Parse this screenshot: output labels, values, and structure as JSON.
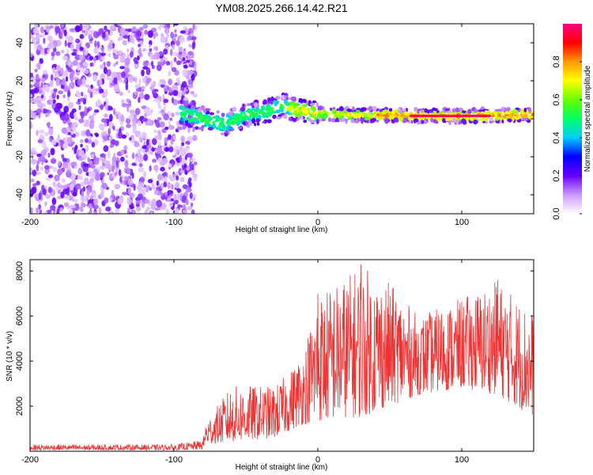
{
  "figure_title": "YM08.2025.266.14.42.R21",
  "chart_data": [
    {
      "type": "heatmap",
      "title": "YM08.2025.266.14.42.R21",
      "xlabel": "Height of straight line (km)",
      "ylabel": "Frequency (Hz)",
      "xlim": [
        -200,
        150
      ],
      "ylim": [
        -50,
        50
      ],
      "x_ticks": [
        -200,
        -100,
        0,
        100
      ],
      "y_ticks": [
        -40,
        -20,
        0,
        20,
        40
      ],
      "x_tick_labels": [
        "-200",
        "-100",
        "0",
        "100"
      ],
      "y_tick_labels": [
        "-40",
        "-20",
        "0",
        "20",
        "40"
      ],
      "noise_region_x": [
        -200,
        -85
      ],
      "signal_band": {
        "x_start": -95,
        "x_end": 150,
        "center_hz": [
          {
            "x": -95,
            "hz": 3
          },
          {
            "x": -80,
            "hz": 0
          },
          {
            "x": -65,
            "hz": -3
          },
          {
            "x": -50,
            "hz": 2
          },
          {
            "x": -35,
            "hz": 4
          },
          {
            "x": -25,
            "hz": 7
          },
          {
            "x": -10,
            "hz": 4
          },
          {
            "x": 0,
            "hz": 3
          },
          {
            "x": 20,
            "hz": 2
          },
          {
            "x": 40,
            "hz": 2
          },
          {
            "x": 70,
            "hz": 1.5
          },
          {
            "x": 100,
            "hz": 1.5
          },
          {
            "x": 150,
            "hz": 2
          }
        ],
        "peak_amplitude_segment_x": [
          65,
          120
        ],
        "peak_amplitude_hz": 1.5
      },
      "colorbar": {
        "label": "Normalized spectral amplitude",
        "range": [
          0,
          1
        ],
        "ticks": [
          0.0,
          0.2,
          0.4,
          0.6,
          0.8
        ],
        "tick_labels": [
          "0.0",
          "0.2",
          "0.4",
          "0.6",
          "0.8"
        ],
        "colors": [
          "#ffffff",
          "#cc99ff",
          "#6600ff",
          "#0000ff",
          "#00ccff",
          "#00ff66",
          "#66ff00",
          "#ffff00",
          "#ff9900",
          "#ff0000",
          "#ff0088"
        ]
      }
    },
    {
      "type": "line",
      "xlabel": "Height of straight line (km)",
      "ylabel": "SNR (10 * v/v)",
      "xlim": [
        -200,
        150
      ],
      "ylim": [
        0,
        8500
      ],
      "x_ticks": [
        -200,
        -100,
        0,
        100
      ],
      "y_ticks": [
        2000,
        4000,
        6000,
        8000
      ],
      "x_tick_labels": [
        "-200",
        "-100",
        "0",
        "100"
      ],
      "y_tick_labels": [
        "2000",
        "4000",
        "6000",
        "8000"
      ],
      "series_color": "#ee3333",
      "envelope": [
        {
          "x": -200,
          "low": 50,
          "high": 300
        },
        {
          "x": -100,
          "low": 50,
          "high": 300
        },
        {
          "x": -80,
          "low": 80,
          "high": 500
        },
        {
          "x": -78,
          "low": 300,
          "high": 1300
        },
        {
          "x": -60,
          "low": 400,
          "high": 2900
        },
        {
          "x": -30,
          "low": 600,
          "high": 2900
        },
        {
          "x": -20,
          "low": 900,
          "high": 3500
        },
        {
          "x": -10,
          "low": 1200,
          "high": 4500
        },
        {
          "x": 0,
          "low": 1300,
          "high": 7000
        },
        {
          "x": 20,
          "low": 1500,
          "high": 7800
        },
        {
          "x": 30,
          "low": 1500,
          "high": 8300
        },
        {
          "x": 50,
          "low": 2000,
          "high": 7500
        },
        {
          "x": 70,
          "low": 2500,
          "high": 6000
        },
        {
          "x": 100,
          "low": 2800,
          "high": 6800
        },
        {
          "x": 125,
          "low": 2500,
          "high": 7600
        },
        {
          "x": 150,
          "low": 1500,
          "high": 6200
        }
      ],
      "peaks": [
        {
          "x": 30,
          "y": 8300
        },
        {
          "x": 125,
          "y": 7600
        },
        {
          "x": 0,
          "y": 7000
        }
      ]
    }
  ]
}
